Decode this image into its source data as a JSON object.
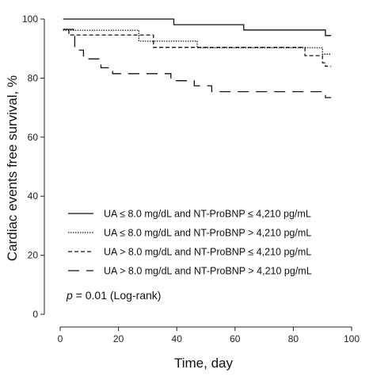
{
  "chart_data": {
    "type": "line",
    "subtype": "kaplan-meier step curve",
    "title": "",
    "xlabel": "Time, day",
    "ylabel": "Cardiac events free survival, %",
    "xlim": [
      0,
      100
    ],
    "ylim": [
      0,
      100
    ],
    "xticks": [
      0,
      20,
      40,
      60,
      80,
      100
    ],
    "yticks": [
      0,
      20,
      40,
      60,
      80,
      100
    ],
    "grid": false,
    "legend_position": "lower-left",
    "series": [
      {
        "name": "UA ≤ 8.0 mg/dL and NT-ProBNP ≤ 4,210 pg/mL",
        "line_style": "solid",
        "x": [
          1,
          39,
          63,
          91,
          93
        ],
        "y": [
          100,
          98.1,
          96.3,
          94.4,
          94.4
        ]
      },
      {
        "name": "UA ≤ 8.0 mg/dL and NT-ProBNP > 4,210 pg/mL",
        "line_style": "dotted",
        "x": [
          1,
          27,
          47,
          90,
          93
        ],
        "y": [
          96.2,
          92.5,
          90.3,
          88.1,
          88.1
        ]
      },
      {
        "name": "UA > 8.0 mg/dL and NT-ProBNP ≤ 4,210 pg/mL",
        "line_style": "dashed",
        "x": [
          1,
          3,
          26,
          32,
          84,
          90,
          91,
          93
        ],
        "y": [
          96.5,
          94.6,
          94.6,
          90.4,
          87.6,
          85.2,
          84.0,
          84.0
        ]
      },
      {
        "name": "UA > 8.0 mg/dL and NT-ProBNP > 4,210 pg/mL",
        "line_style": "long-dash",
        "x": [
          1,
          5,
          8,
          14,
          18,
          38,
          46,
          52,
          91,
          93
        ],
        "y": [
          96.5,
          89.5,
          86.5,
          83.5,
          81.5,
          79.1,
          77.4,
          75.4,
          73.4,
          73.4
        ]
      }
    ],
    "annotations": [
      {
        "p_symbol": "p",
        "rest": " = 0.01 (Log-rank)"
      }
    ]
  }
}
